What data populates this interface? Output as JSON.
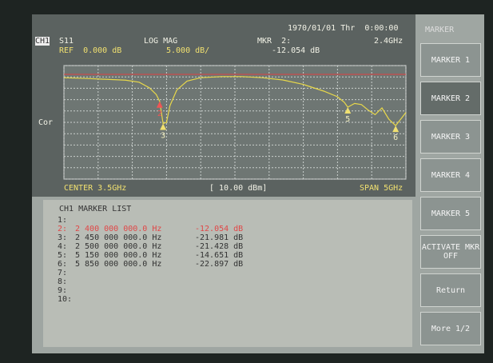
{
  "header": {
    "datetime": "1970/01/01 Thr  0:00:00",
    "channel": "CH1",
    "parameter": "S11",
    "format": "LOG MAG",
    "marker_label": "MKR  2:",
    "marker_freq": "2.4GHz",
    "ref": "REF  0.000 dB",
    "scale": "5.000 dB/",
    "marker_value": "-12.054 dB",
    "correction": "Cor"
  },
  "footer": {
    "center": "CENTER 3.5GHz",
    "power": "[ 10.00 dBm]",
    "span": "SPAN 5GHz"
  },
  "trace": {
    "x_ghz": [
      1.0,
      1.3,
      1.6,
      1.9,
      2.1,
      2.25,
      2.35,
      2.4,
      2.45,
      2.5,
      2.55,
      2.65,
      2.8,
      3.0,
      3.3,
      3.6,
      3.9,
      4.2,
      4.5,
      4.8,
      5.0,
      5.1,
      5.15,
      5.25,
      5.35,
      5.45,
      5.55,
      5.65,
      5.75,
      5.85,
      5.95,
      6.0
    ],
    "y_db": [
      -1.5,
      -1.8,
      -2.2,
      -2.6,
      -3.5,
      -6,
      -9,
      -12.054,
      -21.981,
      -21.428,
      -14,
      -7,
      -3,
      -1.5,
      -1,
      -1,
      -1.5,
      -2.5,
      -4.5,
      -7.5,
      -10,
      -12.5,
      -14.651,
      -13,
      -13.5,
      -16,
      -18,
      -15,
      -20,
      -22.897,
      -19,
      -17
    ]
  },
  "ref_db": 0,
  "scale_db_per_div": 5,
  "graph_markers": [
    {
      "label": "2",
      "x_ghz": 2.4,
      "y_db": -12.054
    },
    {
      "label": "3",
      "x_ghz": 2.45,
      "y_db": -21.981
    },
    {
      "label": "5",
      "x_ghz": 5.15,
      "y_db": -14.651
    },
    {
      "label": "6",
      "x_ghz": 5.85,
      "y_db": -22.897
    }
  ],
  "marker_list": {
    "title": "CH1 MARKER LIST",
    "rows": [
      [
        "1:",
        "",
        ""
      ],
      [
        "2:",
        "2 400 000 000.0 Hz",
        "-12.054 dB"
      ],
      [
        "3:",
        "2 450 000 000.0 Hz",
        "-21.981 dB"
      ],
      [
        "4:",
        "2 500 000 000.0 Hz",
        "-21.428 dB"
      ],
      [
        "5:",
        "5 150 000 000.0 Hz",
        "-14.651 dB"
      ],
      [
        "6:",
        "5 850 000 000.0 Hz",
        "-22.897 dB"
      ],
      [
        "7:",
        "",
        ""
      ],
      [
        "8:",
        "",
        ""
      ],
      [
        "9:",
        "",
        ""
      ],
      [
        "10:",
        "",
        ""
      ]
    ]
  },
  "softkeys": {
    "title": "MARKER",
    "keys": [
      "MARKER 1",
      "MARKER 2",
      "MARKER 3",
      "MARKER 4",
      "MARKER 5",
      "ACTIVATE MKR OFF",
      "Return",
      "More 1/2"
    ]
  }
}
